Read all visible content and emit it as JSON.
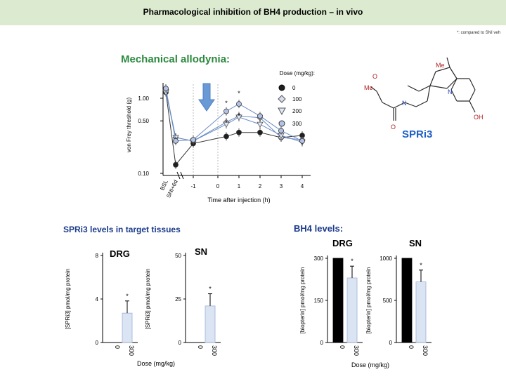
{
  "header": {
    "title": "Pharmacological inhibition of BH4 production – in vivo"
  },
  "footnote": "*: compared to SNI veh",
  "mechanical": {
    "heading": "Mechanical allodynia:",
    "legend_title": "Dose (mg/kg):",
    "compound_label": "SPRi3",
    "colors": {
      "c0": "#1f1f1f",
      "c100": "#d8dff0",
      "c200": "#e2e8f6",
      "c300": "#b3c3e6",
      "line": "#6a8cc4",
      "arrow": "#6a9ad6"
    }
  },
  "chart_data": [
    {
      "id": "allodynia",
      "type": "line",
      "title": "Mechanical allodynia:",
      "ylabel": "von Frey threshold (g)",
      "xlabel": "Time after injection (h)",
      "yscale": "log",
      "ylim": [
        0.1,
        2.0
      ],
      "yticks": [
        "1.00",
        "0.50",
        "0.10"
      ],
      "xticks": [
        "BSL",
        "SNI+6d",
        "-1",
        "0",
        "1",
        "2",
        "3",
        "4"
      ],
      "legend": [
        "0",
        "100",
        "200",
        "300"
      ],
      "series": [
        {
          "name": "0",
          "values": [
            1.2,
            0.13,
            0.25,
            null,
            0.31,
            0.35,
            0.35,
            0.3,
            0.32
          ]
        },
        {
          "name": "100",
          "values": [
            1.3,
            0.3,
            0.27,
            null,
            0.48,
            0.58,
            0.55,
            0.3,
            0.28
          ]
        },
        {
          "name": "200",
          "values": [
            1.2,
            0.3,
            0.27,
            null,
            0.45,
            0.56,
            0.45,
            0.32,
            0.26
          ]
        },
        {
          "name": "300",
          "values": [
            1.35,
            0.27,
            0.28,
            null,
            0.67,
            0.84,
            0.58,
            0.37,
            0.27
          ]
        }
      ],
      "x": [
        "BSL",
        "SNI+6d",
        "-1",
        "0",
        "0.5",
        "1",
        "2",
        "3",
        "4"
      ],
      "significance": [
        "*",
        "*",
        "*",
        "*"
      ]
    },
    {
      "id": "levels-drg",
      "type": "bar",
      "title": "DRG",
      "ylabel": "[SPRi3] pmol/mg protein",
      "categories": [
        "0",
        "300"
      ],
      "values": [
        0,
        2.7
      ],
      "ylim": [
        0,
        8
      ],
      "yticks": [
        "8",
        "4",
        "0"
      ],
      "significance": "*"
    },
    {
      "id": "levels-sn",
      "type": "bar",
      "title": "SN",
      "ylabel": "[SPRi3] pmol/mg protein",
      "categories": [
        "0",
        "300"
      ],
      "values": [
        0,
        21
      ],
      "ylim": [
        0,
        50
      ],
      "yticks": [
        "50",
        "25",
        "0"
      ],
      "significance": "*"
    },
    {
      "id": "bh4-drg",
      "type": "bar",
      "title": "DRG",
      "ylabel": "[biopterin] pmol/mg protein",
      "categories": [
        "0",
        "300"
      ],
      "values": [
        300,
        230
      ],
      "ylim": [
        0,
        300
      ],
      "yticks": [
        "300",
        "150",
        "0"
      ],
      "significance": "*"
    },
    {
      "id": "bh4-sn",
      "type": "bar",
      "title": "SN",
      "ylabel": "[biopterin] pmol/mg protein",
      "categories": [
        "0",
        "300"
      ],
      "values": [
        1000,
        720
      ],
      "ylim": [
        0,
        1000
      ],
      "yticks": [
        "1000",
        "500",
        "0"
      ],
      "significance": "*"
    }
  ],
  "levels_section": {
    "heading": "SPRi3 levels in target tissues",
    "dose_label": "Dose (mg/kg)"
  },
  "bh4_section": {
    "heading": "BH4 levels:",
    "dose_label": "Dose (mg/kg)"
  },
  "bar_colors": {
    "zero": "#000000",
    "treated": "#dae4f2",
    "treated_edge": "#9fb3d6"
  }
}
